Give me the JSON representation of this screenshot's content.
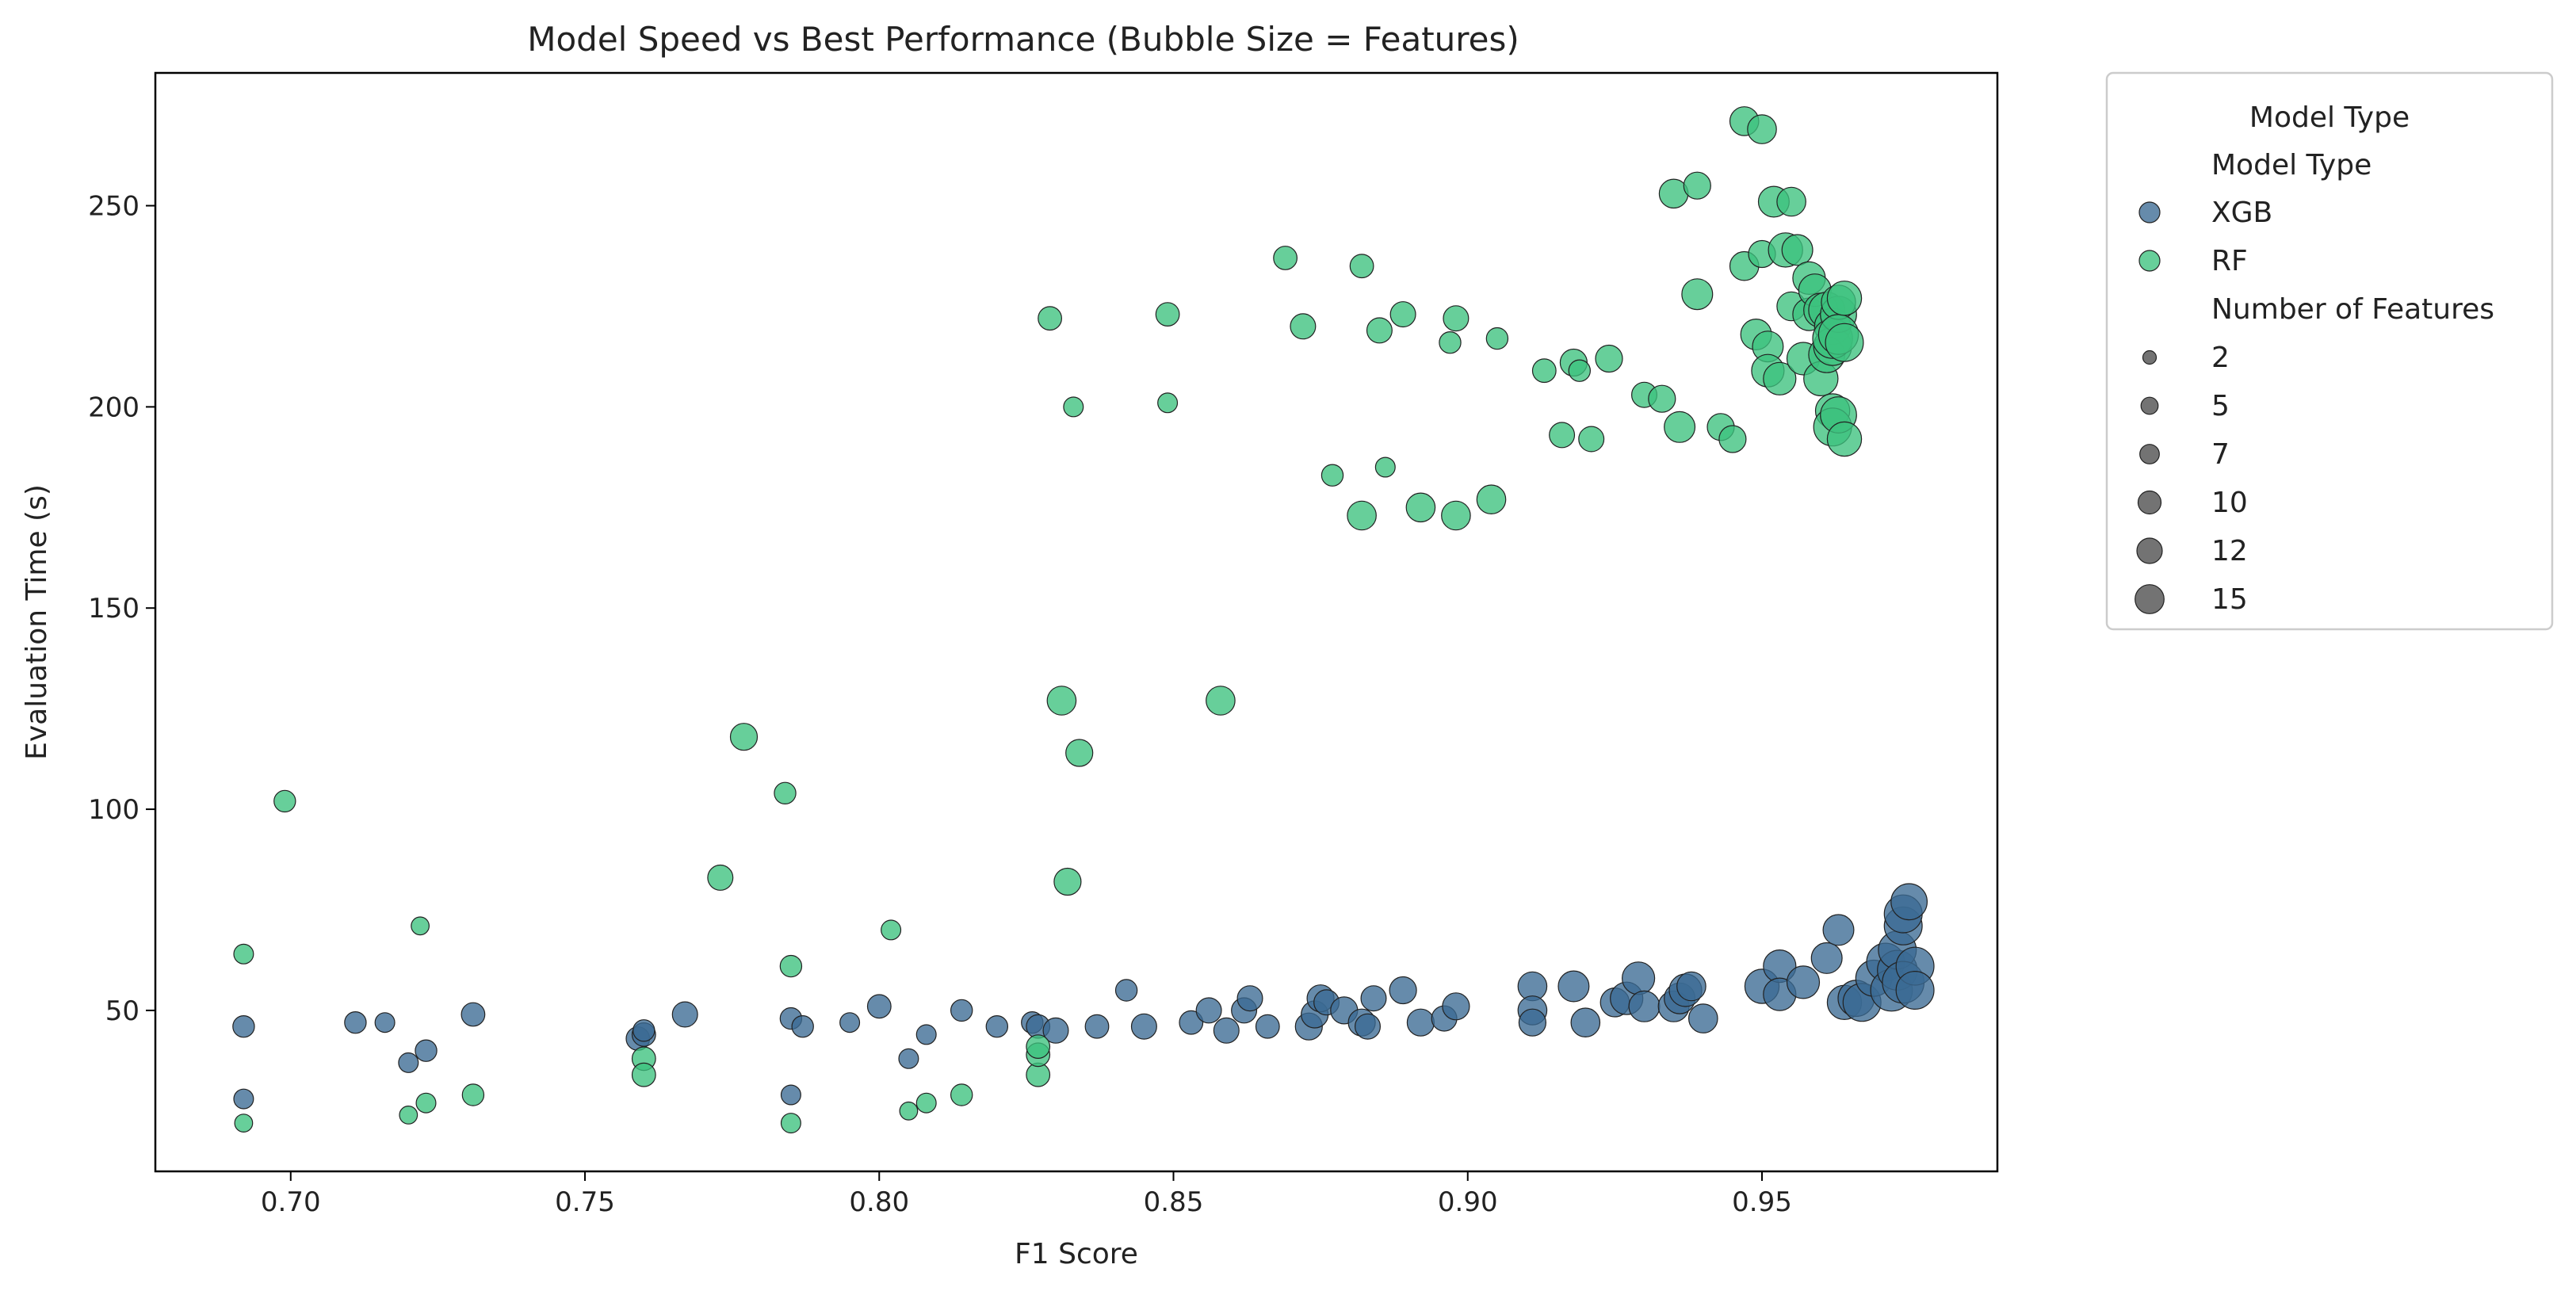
{
  "chart_data": {
    "type": "scatter",
    "title": "Model Speed vs Best Performance (Bubble Size = Features)",
    "xlabel": "F1 Score",
    "ylabel": "Evaluation Time (s)",
    "xlim": [
      0.677,
      0.99
    ],
    "ylim": [
      10,
      283
    ],
    "xticks": [
      "0.70",
      "0.75",
      "0.80",
      "0.85",
      "0.90",
      "0.95"
    ],
    "yticks": [
      "50",
      "100",
      "150",
      "200",
      "250"
    ],
    "grid": false,
    "legend": {
      "placement": "outside-right",
      "title": "Model Type",
      "hue_title": "Model Type",
      "size_title": "Number of Features",
      "sizes": [
        2,
        5,
        7,
        10,
        12,
        15
      ]
    },
    "colors": {
      "XGB": "#3b6a93",
      "RF": "#3cc17e"
    },
    "series": [
      {
        "name": "XGB",
        "points": [
          [
            0.692,
            46,
            4
          ],
          [
            0.692,
            28,
            3
          ],
          [
            0.711,
            47,
            4
          ],
          [
            0.716,
            47,
            3
          ],
          [
            0.72,
            37,
            3
          ],
          [
            0.723,
            40,
            4
          ],
          [
            0.731,
            49,
            5
          ],
          [
            0.759,
            43,
            5
          ],
          [
            0.76,
            44,
            5
          ],
          [
            0.76,
            45,
            4
          ],
          [
            0.767,
            49,
            6
          ],
          [
            0.785,
            48,
            4
          ],
          [
            0.785,
            29,
            3
          ],
          [
            0.787,
            46,
            4
          ],
          [
            0.795,
            47,
            3
          ],
          [
            0.8,
            51,
            5
          ],
          [
            0.805,
            38,
            3
          ],
          [
            0.808,
            44,
            3
          ],
          [
            0.814,
            50,
            4
          ],
          [
            0.82,
            46,
            4
          ],
          [
            0.826,
            47,
            4
          ],
          [
            0.827,
            46,
            5
          ],
          [
            0.83,
            45,
            6
          ],
          [
            0.837,
            46,
            5
          ],
          [
            0.842,
            55,
            4
          ],
          [
            0.845,
            46,
            6
          ],
          [
            0.853,
            47,
            5
          ],
          [
            0.856,
            50,
            6
          ],
          [
            0.859,
            45,
            6
          ],
          [
            0.862,
            50,
            6
          ],
          [
            0.863,
            53,
            6
          ],
          [
            0.866,
            46,
            5
          ],
          [
            0.873,
            46,
            7
          ],
          [
            0.874,
            49,
            7
          ],
          [
            0.875,
            53,
            7
          ],
          [
            0.876,
            52,
            6
          ],
          [
            0.879,
            50,
            7
          ],
          [
            0.882,
            47,
            7
          ],
          [
            0.883,
            46,
            6
          ],
          [
            0.884,
            53,
            6
          ],
          [
            0.889,
            55,
            7
          ],
          [
            0.892,
            47,
            7
          ],
          [
            0.896,
            48,
            6
          ],
          [
            0.898,
            51,
            7
          ],
          [
            0.911,
            56,
            8
          ],
          [
            0.911,
            50,
            8
          ],
          [
            0.911,
            47,
            7
          ],
          [
            0.918,
            56,
            9
          ],
          [
            0.92,
            47,
            8
          ],
          [
            0.925,
            52,
            8
          ],
          [
            0.927,
            53,
            10
          ],
          [
            0.929,
            58,
            10
          ],
          [
            0.93,
            51,
            9
          ],
          [
            0.935,
            51,
            9
          ],
          [
            0.936,
            53,
            9
          ],
          [
            0.937,
            55,
            10
          ],
          [
            0.938,
            56,
            8
          ],
          [
            0.94,
            48,
            8
          ],
          [
            0.95,
            56,
            11
          ],
          [
            0.953,
            61,
            10
          ],
          [
            0.953,
            54,
            10
          ],
          [
            0.957,
            57,
            10
          ],
          [
            0.961,
            63,
            9
          ],
          [
            0.963,
            70,
            9
          ],
          [
            0.964,
            52,
            11
          ],
          [
            0.966,
            53,
            12
          ],
          [
            0.967,
            52,
            13
          ],
          [
            0.969,
            58,
            12
          ],
          [
            0.971,
            62,
            13
          ],
          [
            0.972,
            55,
            15
          ],
          [
            0.973,
            60,
            14
          ],
          [
            0.973,
            65,
            13
          ],
          [
            0.974,
            71,
            13
          ],
          [
            0.974,
            74,
            13
          ],
          [
            0.974,
            57,
            15
          ],
          [
            0.975,
            77,
            12
          ],
          [
            0.976,
            61,
            13
          ],
          [
            0.976,
            55,
            13
          ]
        ]
      },
      {
        "name": "RF",
        "points": [
          [
            0.692,
            64,
            3
          ],
          [
            0.692,
            22,
            2
          ],
          [
            0.699,
            102,
            4
          ],
          [
            0.72,
            24,
            2
          ],
          [
            0.722,
            71,
            2
          ],
          [
            0.723,
            27,
            3
          ],
          [
            0.731,
            29,
            4
          ],
          [
            0.76,
            38,
            5
          ],
          [
            0.76,
            34,
            5
          ],
          [
            0.773,
            83,
            6
          ],
          [
            0.777,
            118,
            7
          ],
          [
            0.784,
            104,
            4
          ],
          [
            0.785,
            61,
            4
          ],
          [
            0.785,
            22,
            3
          ],
          [
            0.802,
            70,
            3
          ],
          [
            0.805,
            25,
            2
          ],
          [
            0.808,
            27,
            3
          ],
          [
            0.814,
            29,
            4
          ],
          [
            0.827,
            34,
            5
          ],
          [
            0.827,
            39,
            5
          ],
          [
            0.827,
            41,
            5
          ],
          [
            0.829,
            222,
            5
          ],
          [
            0.831,
            127,
            8
          ],
          [
            0.832,
            82,
            7
          ],
          [
            0.833,
            200,
            3
          ],
          [
            0.834,
            114,
            7
          ],
          [
            0.849,
            223,
            5
          ],
          [
            0.849,
            201,
            3
          ],
          [
            0.858,
            127,
            8
          ],
          [
            0.869,
            237,
            5
          ],
          [
            0.872,
            220,
            6
          ],
          [
            0.877,
            183,
            4
          ],
          [
            0.882,
            235,
            5
          ],
          [
            0.882,
            173,
            8
          ],
          [
            0.885,
            219,
            6
          ],
          [
            0.886,
            185,
            3
          ],
          [
            0.889,
            223,
            6
          ],
          [
            0.892,
            175,
            8
          ],
          [
            0.897,
            216,
            4
          ],
          [
            0.898,
            222,
            6
          ],
          [
            0.898,
            173,
            8
          ],
          [
            0.904,
            177,
            8
          ],
          [
            0.905,
            217,
            4
          ],
          [
            0.913,
            209,
            5
          ],
          [
            0.916,
            193,
            6
          ],
          [
            0.918,
            211,
            7
          ],
          [
            0.919,
            209,
            4
          ],
          [
            0.921,
            192,
            6
          ],
          [
            0.924,
            212,
            7
          ],
          [
            0.93,
            203,
            6
          ],
          [
            0.933,
            202,
            7
          ],
          [
            0.935,
            253,
            8
          ],
          [
            0.936,
            195,
            9
          ],
          [
            0.939,
            255,
            7
          ],
          [
            0.939,
            228,
            9
          ],
          [
            0.943,
            195,
            7
          ],
          [
            0.945,
            192,
            7
          ],
          [
            0.947,
            271,
            8
          ],
          [
            0.947,
            235,
            8
          ],
          [
            0.949,
            218,
            9
          ],
          [
            0.95,
            269,
            8
          ],
          [
            0.95,
            238,
            7
          ],
          [
            0.951,
            215,
            9
          ],
          [
            0.951,
            209,
            10
          ],
          [
            0.952,
            251,
            9
          ],
          [
            0.953,
            207,
            10
          ],
          [
            0.954,
            239,
            11
          ],
          [
            0.955,
            251,
            8
          ],
          [
            0.955,
            225,
            8
          ],
          [
            0.956,
            239,
            9
          ],
          [
            0.957,
            212,
            10
          ],
          [
            0.958,
            232,
            10
          ],
          [
            0.958,
            223,
            10
          ],
          [
            0.959,
            229,
            10
          ],
          [
            0.96,
            224,
            11
          ],
          [
            0.96,
            207,
            11
          ],
          [
            0.961,
            213,
            12
          ],
          [
            0.961,
            224,
            12
          ],
          [
            0.962,
            220,
            12
          ],
          [
            0.962,
            215,
            13
          ],
          [
            0.962,
            217,
            14
          ],
          [
            0.962,
            199,
            11
          ],
          [
            0.962,
            195,
            13
          ],
          [
            0.963,
            223,
            12
          ],
          [
            0.963,
            226,
            11
          ],
          [
            0.963,
            218,
            14
          ],
          [
            0.963,
            198,
            12
          ],
          [
            0.964,
            216,
            13
          ],
          [
            0.964,
            227,
            11
          ],
          [
            0.964,
            192,
            11
          ]
        ]
      }
    ]
  }
}
